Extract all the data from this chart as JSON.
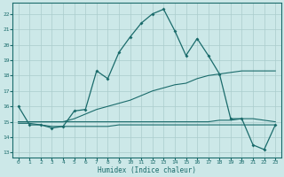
{
  "xlabel": "Humidex (Indice chaleur)",
  "bg_color": "#cce8e8",
  "grid_color": "#aacccc",
  "line_color": "#1a6b6b",
  "xlim": [
    -0.5,
    23.5
  ],
  "ylim": [
    12.7,
    22.7
  ],
  "yticks": [
    13,
    14,
    15,
    16,
    17,
    18,
    19,
    20,
    21,
    22
  ],
  "xticks": [
    0,
    1,
    2,
    3,
    4,
    5,
    6,
    7,
    8,
    9,
    10,
    11,
    12,
    13,
    14,
    15,
    16,
    17,
    18,
    19,
    20,
    21,
    22,
    23
  ],
  "line1_x": [
    0,
    1,
    2,
    3,
    4,
    5,
    6,
    7,
    8,
    9,
    10,
    11,
    12,
    13,
    14,
    15,
    16,
    17,
    18,
    19,
    20,
    21,
    22,
    23
  ],
  "line1_y": [
    16.0,
    14.8,
    14.8,
    14.6,
    14.7,
    15.7,
    15.8,
    18.3,
    17.8,
    19.5,
    20.5,
    21.4,
    22.0,
    22.3,
    20.9,
    19.3,
    20.4,
    19.3,
    18.1,
    15.2,
    15.2,
    13.5,
    13.2,
    14.8
  ],
  "line2_x": [
    0,
    1,
    2,
    3,
    4,
    5,
    6,
    7,
    8,
    9,
    10,
    11,
    12,
    13,
    14,
    15,
    16,
    17,
    18,
    19,
    20,
    21,
    22,
    23
  ],
  "line2_y": [
    15.0,
    15.0,
    15.0,
    15.0,
    15.0,
    15.2,
    15.5,
    15.8,
    16.0,
    16.2,
    16.4,
    16.7,
    17.0,
    17.2,
    17.4,
    17.5,
    17.8,
    18.0,
    18.1,
    18.2,
    18.3,
    18.3,
    18.3,
    18.3
  ],
  "line3_x": [
    0,
    1,
    2,
    3,
    4,
    5,
    6,
    7,
    8,
    9,
    10,
    11,
    12,
    13,
    14,
    15,
    16,
    17,
    18,
    19,
    20,
    21,
    22,
    23
  ],
  "line3_y": [
    15.0,
    15.0,
    15.0,
    15.0,
    15.0,
    15.0,
    15.0,
    15.0,
    15.0,
    15.0,
    15.0,
    15.0,
    15.0,
    15.0,
    15.0,
    15.0,
    15.0,
    15.0,
    15.1,
    15.1,
    15.2,
    15.2,
    15.1,
    15.0
  ],
  "line4_x": [
    0,
    1,
    2,
    3,
    4,
    5,
    6,
    7,
    8,
    9,
    10,
    11,
    12,
    13,
    14,
    15,
    16,
    17,
    18,
    19,
    20,
    21,
    22,
    23
  ],
  "line4_y": [
    14.9,
    14.9,
    14.8,
    14.7,
    14.7,
    14.7,
    14.7,
    14.7,
    14.7,
    14.8,
    14.8,
    14.8,
    14.8,
    14.8,
    14.8,
    14.8,
    14.8,
    14.8,
    14.8,
    14.8,
    14.8,
    14.8,
    14.8,
    14.8
  ]
}
